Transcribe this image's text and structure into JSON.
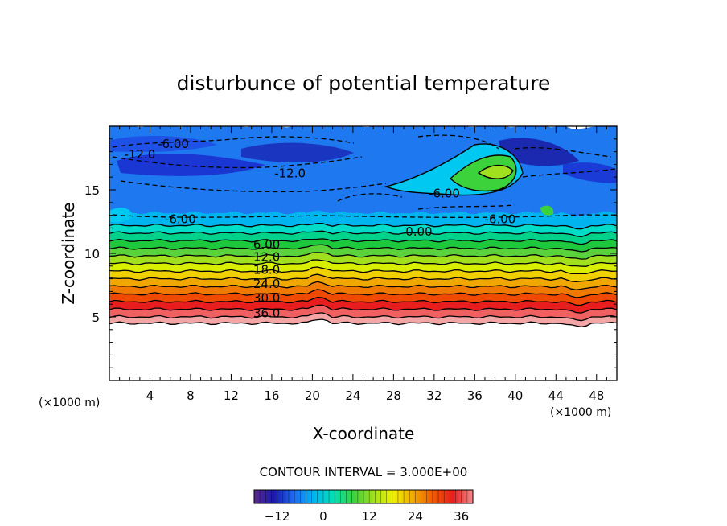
{
  "chart_data": {
    "type": "contour",
    "title": "disturbunce of potential temperature",
    "xlabel": "X-coordinate",
    "ylabel": "Z-coordinate",
    "x_unit": "(×1000 m)",
    "x_unit_right": "(×1000 m)",
    "xlim": [
      0,
      50
    ],
    "ylim": [
      0,
      20
    ],
    "x_ticks": [
      4,
      8,
      12,
      16,
      20,
      24,
      28,
      32,
      36,
      40,
      44,
      48
    ],
    "y_ticks": [
      5,
      10,
      15
    ],
    "contour_interval_text": "CONTOUR INTERVAL = 3.000E+00",
    "contour_interval": 3.0,
    "colorbar": {
      "min": -18,
      "max": 39,
      "ticks": [
        -12,
        0,
        12,
        24,
        36
      ],
      "colors": [
        "#5a2a8a",
        "#1a1ab0",
        "#1e6cf0",
        "#00b4f0",
        "#00e0b4",
        "#3cd23c",
        "#a0e01e",
        "#f0f000",
        "#f0a800",
        "#f05a00",
        "#e81e1e",
        "#f08c8c"
      ]
    },
    "bands": [
      {
        "z_bottom": 4.5,
        "z_top": 5.0,
        "value": 39,
        "color": "#f4a6a6"
      },
      {
        "z_bottom": 5.0,
        "z_top": 5.6,
        "value": 36,
        "color": "#f06060"
      },
      {
        "z_bottom": 5.6,
        "z_top": 6.2,
        "value": 33,
        "color": "#e81e1e"
      },
      {
        "z_bottom": 6.2,
        "z_top": 6.8,
        "value": 30,
        "color": "#f04a00"
      },
      {
        "z_bottom": 6.8,
        "z_top": 7.4,
        "value": 27,
        "color": "#f07a00"
      },
      {
        "z_bottom": 7.4,
        "z_top": 8.0,
        "value": 24,
        "color": "#f0a800"
      },
      {
        "z_bottom": 8.0,
        "z_top": 8.6,
        "value": 21,
        "color": "#f0d000"
      },
      {
        "z_bottom": 8.6,
        "z_top": 9.2,
        "value": 18,
        "color": "#d8f000"
      },
      {
        "z_bottom": 9.2,
        "z_top": 9.8,
        "value": 15,
        "color": "#a0e01e"
      },
      {
        "z_bottom": 9.8,
        "z_top": 10.4,
        "value": 12,
        "color": "#5ad23c"
      },
      {
        "z_bottom": 10.4,
        "z_top": 11.0,
        "value": 9,
        "color": "#1ec83c"
      },
      {
        "z_bottom": 11.0,
        "z_top": 11.6,
        "value": 6,
        "color": "#00d28c"
      },
      {
        "z_bottom": 11.6,
        "z_top": 12.2,
        "value": 3,
        "color": "#00dcc8"
      },
      {
        "z_bottom": 12.2,
        "z_top": 13.2,
        "value": 0,
        "color": "#00b4f0"
      },
      {
        "z_bottom": 13.2,
        "z_top": 20.0,
        "value": -6,
        "color": "#1e78f0"
      }
    ],
    "contour_labels": [
      {
        "text": "-6.00",
        "x": 6.3,
        "z": 18.6
      },
      {
        "text": "-12.0",
        "x": 3.0,
        "z": 17.8
      },
      {
        "text": "-12.0",
        "x": 17.8,
        "z": 16.3
      },
      {
        "text": "-6.00",
        "x": 7.0,
        "z": 12.7
      },
      {
        "text": "-6.00",
        "x": 33.0,
        "z": 14.7
      },
      {
        "text": "-6.00",
        "x": 38.5,
        "z": 12.7
      },
      {
        "text": "0.00",
        "x": 30.5,
        "z": 11.7
      },
      {
        "text": "6.00",
        "x": 15.5,
        "z": 10.7
      },
      {
        "text": "12.0",
        "x": 15.5,
        "z": 9.7
      },
      {
        "text": "18.0",
        "x": 15.5,
        "z": 8.7
      },
      {
        "text": "24.0",
        "x": 15.5,
        "z": 7.6
      },
      {
        "text": "30.0",
        "x": 15.5,
        "z": 6.5
      },
      {
        "text": "36.0",
        "x": 15.5,
        "z": 5.3
      }
    ]
  }
}
